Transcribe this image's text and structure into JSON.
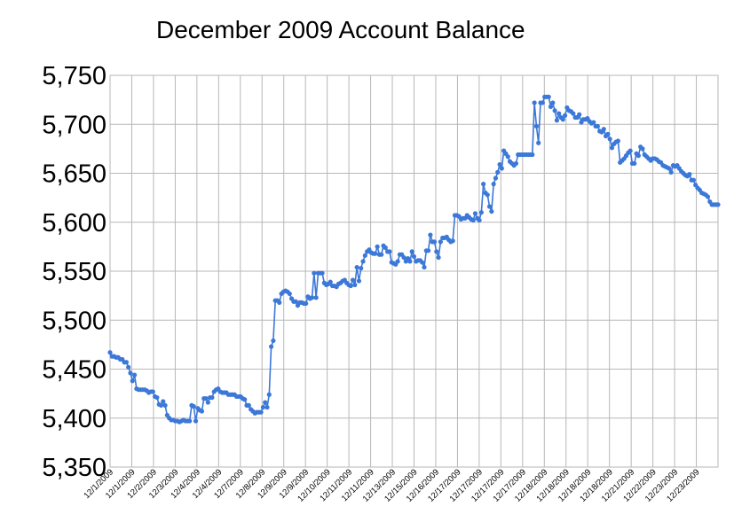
{
  "chart_data": {
    "type": "line",
    "title": "December 2009 Account Balance",
    "xlabel": "",
    "ylabel": "",
    "ylim": [
      5350,
      5750
    ],
    "yticks": [
      5350,
      5400,
      5450,
      5500,
      5550,
      5600,
      5650,
      5700,
      5750
    ],
    "ytick_labels": [
      "5,350",
      "5,400",
      "5,450",
      "5,500",
      "5,550",
      "5,600",
      "5,650",
      "5,700",
      "5,750"
    ],
    "xtick_labels": [
      "12/1/2009",
      "12/1/2009",
      "12/2/2009",
      "12/3/2009",
      "12/4/2009",
      "12/4/2009",
      "12/7/2009",
      "12/8/2009",
      "12/9/2009",
      "12/9/2009",
      "12/10/2009",
      "12/11/2009",
      "12/11/2009",
      "12/13/2009",
      "12/15/2009",
      "12/16/2009",
      "12/17/2009",
      "12/17/2009",
      "12/17/2009",
      "12/17/2009",
      "12/18/2009",
      "12/18/2009",
      "12/18/2009",
      "12/18/2009",
      "12/21/2009",
      "12/22/2009",
      "12/23/2009",
      "12/23/2009"
    ],
    "grid": true,
    "legend": "none",
    "colors": {
      "line": "#3c78d8",
      "grid": "#b7b7b7"
    },
    "series": [
      {
        "values": [
          5467,
          5463,
          5463,
          5462,
          5462,
          5460,
          5460,
          5457,
          5457,
          5452,
          5446,
          5438,
          5444,
          5430,
          5429,
          5429,
          5429,
          5429,
          5428,
          5426,
          5427,
          5427,
          5422,
          5421,
          5414,
          5413,
          5417,
          5413,
          5403,
          5400,
          5398,
          5398,
          5397,
          5397,
          5396,
          5397,
          5398,
          5397,
          5397,
          5397,
          5413,
          5412,
          5397,
          5410,
          5408,
          5407,
          5420,
          5420,
          5416,
          5421,
          5421,
          5427,
          5429,
          5430,
          5427,
          5426,
          5426,
          5426,
          5424,
          5424,
          5424,
          5424,
          5422,
          5422,
          5422,
          5420,
          5419,
          5413,
          5413,
          5409,
          5407,
          5405,
          5406,
          5406,
          5406,
          5411,
          5416,
          5411,
          5424,
          5473,
          5479,
          5520,
          5520,
          5518,
          5527,
          5529,
          5530,
          5529,
          5527,
          5522,
          5519,
          5519,
          5515,
          5518,
          5518,
          5517,
          5517,
          5524,
          5522,
          5523,
          5548,
          5523,
          5548,
          5548,
          5548,
          5538,
          5536,
          5537,
          5539,
          5535,
          5535,
          5534,
          5537,
          5538,
          5540,
          5541,
          5538,
          5536,
          5535,
          5541,
          5536,
          5554,
          5540,
          5553,
          5560,
          5566,
          5570,
          5572,
          5569,
          5568,
          5568,
          5575,
          5567,
          5567,
          5576,
          5574,
          5570,
          5570,
          5559,
          5558,
          5557,
          5560,
          5567,
          5567,
          5564,
          5560,
          5563,
          5560,
          5570,
          5565,
          5560,
          5561,
          5561,
          5559,
          5554,
          5571,
          5571,
          5587,
          5580,
          5580,
          5570,
          5564,
          5580,
          5584,
          5584,
          5585,
          5582,
          5580,
          5581,
          5607,
          5607,
          5606,
          5603,
          5604,
          5604,
          5607,
          5605,
          5603,
          5602,
          5609,
          5604,
          5602,
          5610,
          5639,
          5630,
          5628,
          5616,
          5611,
          5639,
          5645,
          5651,
          5659,
          5655,
          5673,
          5670,
          5667,
          5662,
          5660,
          5658,
          5660,
          5669,
          5669,
          5669,
          5669,
          5669,
          5669,
          5669,
          5669,
          5722,
          5698,
          5681,
          5722,
          5722,
          5728,
          5728,
          5728,
          5718,
          5722,
          5714,
          5704,
          5711,
          5707,
          5705,
          5709,
          5717,
          5714,
          5713,
          5711,
          5707,
          5707,
          5710,
          5702,
          5705,
          5705,
          5706,
          5703,
          5701,
          5702,
          5698,
          5698,
          5693,
          5692,
          5695,
          5688,
          5690,
          5685,
          5676,
          5680,
          5682,
          5683,
          5661,
          5663,
          5665,
          5668,
          5671,
          5673,
          5660,
          5660,
          5670,
          5668,
          5677,
          5675,
          5669,
          5667,
          5665,
          5663,
          5665,
          5665,
          5664,
          5662,
          5661,
          5658,
          5657,
          5656,
          5655,
          5651,
          5658,
          5657,
          5658,
          5655,
          5652,
          5650,
          5648,
          5647,
          5649,
          5643,
          5643,
          5638,
          5635,
          5633,
          5630,
          5629,
          5628,
          5626,
          5621,
          5618,
          5618,
          5618,
          5618
        ]
      }
    ]
  }
}
